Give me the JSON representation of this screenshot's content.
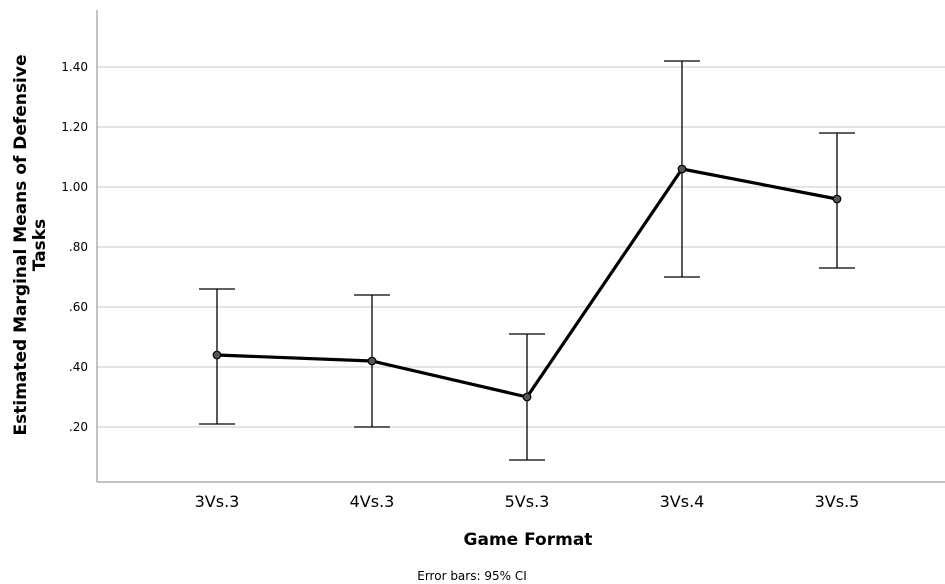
{
  "chart_data": {
    "type": "line",
    "xlabel": "Game Format",
    "ylabel_line1": "Estimated Marginal Means of Defensive",
    "ylabel_line2": "Tasks",
    "note": "Error bars: 95% CI",
    "categories": [
      "3Vs.3",
      "4Vs.3",
      "5Vs.3",
      "3Vs.4",
      "3Vs.5"
    ],
    "values": [
      0.44,
      0.42,
      0.3,
      1.06,
      0.96
    ],
    "ci_lower": [
      0.21,
      0.2,
      0.09,
      0.7,
      0.73
    ],
    "ci_upper": [
      0.66,
      0.64,
      0.51,
      1.42,
      1.18
    ],
    "yticks": [
      0.2,
      0.4,
      0.6,
      0.8,
      1.0,
      1.2,
      1.4
    ],
    "ytick_labels": [
      ".20",
      ".40",
      ".60",
      ".80",
      "1.00",
      "1.20",
      "1.40"
    ],
    "ylim": [
      0.02,
      1.58
    ],
    "grid": true,
    "colors": {
      "line": "#000000",
      "marker": "#555555",
      "grid": "#c8c8c8",
      "axis": "#888888"
    }
  }
}
